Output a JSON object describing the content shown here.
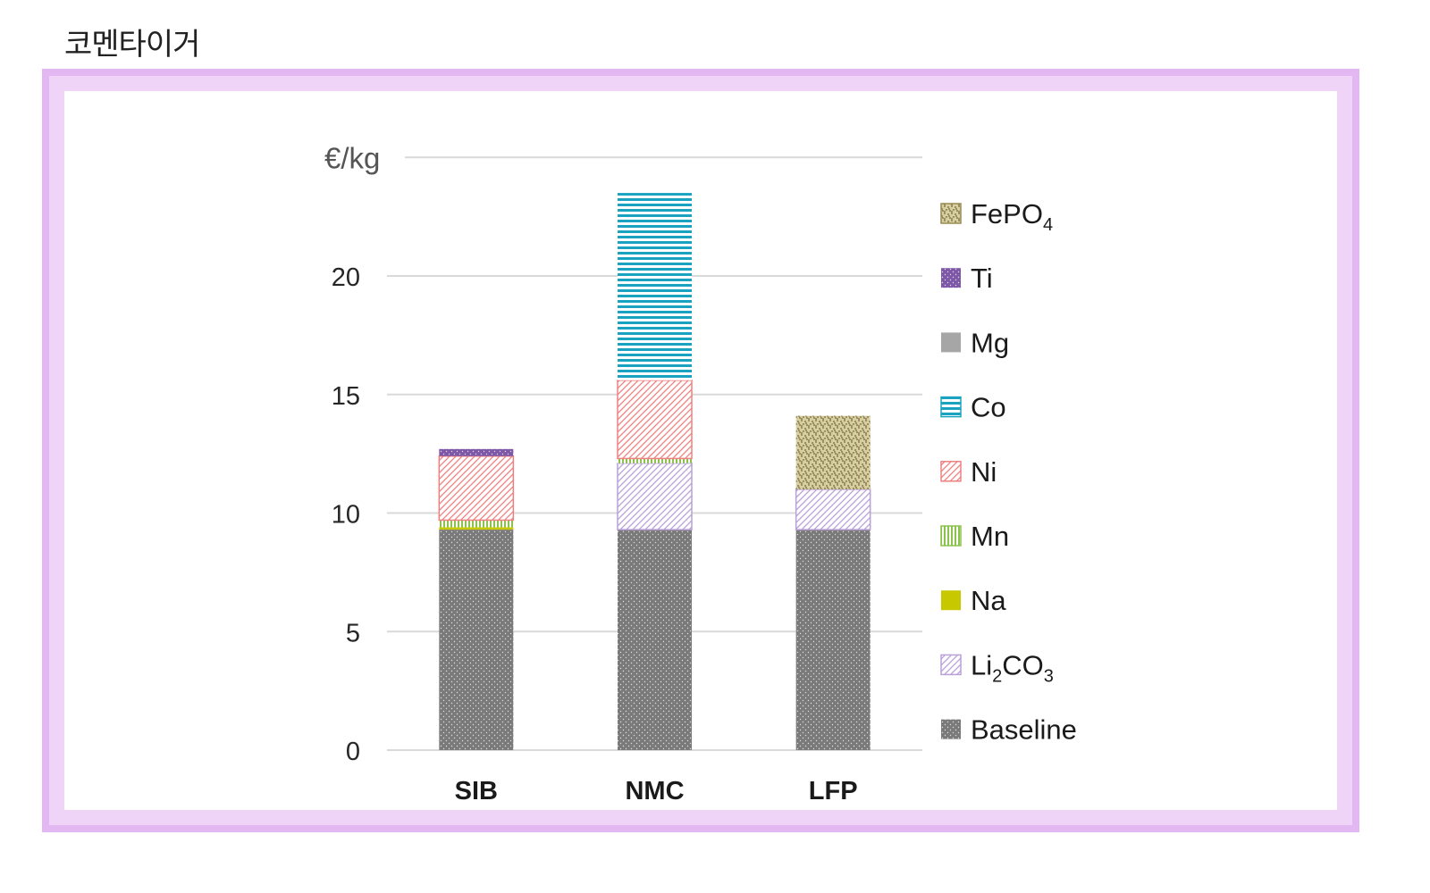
{
  "page": {
    "title": "코멘타이거"
  },
  "chart_data": {
    "type": "bar",
    "stacked": true,
    "title": "",
    "ylabel": "€/kg",
    "xlabel": "",
    "ylim": [
      0,
      25
    ],
    "yticks": [
      0,
      5,
      10,
      15,
      20
    ],
    "grid": true,
    "legend_position": "right",
    "categories": [
      "SIB",
      "NMC",
      "LFP"
    ],
    "series": [
      {
        "name": "Baseline",
        "legend_main": "Baseline",
        "legend_sub": "",
        "legend_tail": "",
        "pattern": "dots",
        "color": "#7a7a7a",
        "values": [
          9.3,
          9.3,
          9.3
        ]
      },
      {
        "name": "Li2CO3",
        "legend_main": "Li",
        "legend_sub": "2",
        "legend_tail": "CO",
        "legend_sub2": "3",
        "pattern": "diag",
        "color": "#b9a0d9",
        "values": [
          0,
          2.8,
          1.7
        ]
      },
      {
        "name": "Na",
        "legend_main": "Na",
        "legend_sub": "",
        "legend_tail": "",
        "pattern": "solid",
        "color": "#c8c800",
        "values": [
          0.1,
          0,
          0
        ]
      },
      {
        "name": "Mn",
        "legend_main": "Mn",
        "legend_sub": "",
        "legend_tail": "",
        "pattern": "vert",
        "color": "#8bc34a",
        "values": [
          0.3,
          0.2,
          0
        ]
      },
      {
        "name": "Ni",
        "legend_main": "Ni",
        "legend_sub": "",
        "legend_tail": "",
        "pattern": "diag",
        "color": "#f08080",
        "values": [
          2.7,
          3.3,
          0
        ]
      },
      {
        "name": "Co",
        "legend_main": "Co",
        "legend_sub": "",
        "legend_tail": "",
        "pattern": "horiz",
        "color": "#1aa3c0",
        "values": [
          0,
          7.9,
          0
        ]
      },
      {
        "name": "Mg",
        "legend_main": "Mg",
        "legend_sub": "",
        "legend_tail": "",
        "pattern": "solid",
        "color": "#a6a6a6",
        "values": [
          0,
          0,
          0
        ]
      },
      {
        "name": "Ti",
        "legend_main": "Ti",
        "legend_sub": "",
        "legend_tail": "",
        "pattern": "dots",
        "color": "#7e57a8",
        "values": [
          0.3,
          0,
          0
        ]
      },
      {
        "name": "FePO4",
        "legend_main": "FePO",
        "legend_sub": "4",
        "legend_tail": "",
        "pattern": "speckle",
        "color": "#9a8c52",
        "values": [
          0,
          0,
          3.1
        ]
      }
    ]
  }
}
